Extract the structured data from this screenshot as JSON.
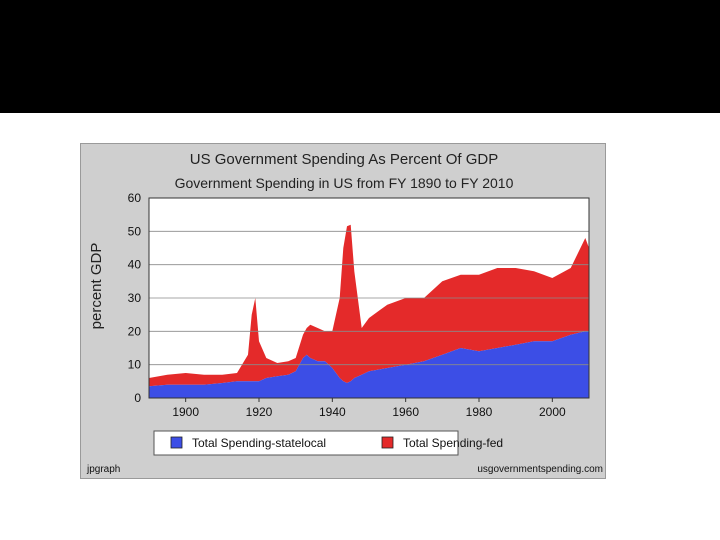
{
  "slide": {
    "background": "#ffffff",
    "band_color": "#000000"
  },
  "chart_data": {
    "type": "area",
    "title": "US Government Spending As Percent Of GDP",
    "subtitle": "Government Spending in US from FY 1890 to FY 2010",
    "xlabel": "",
    "ylabel": "percent GDP",
    "xlim": [
      1890,
      2010
    ],
    "ylim": [
      0,
      60
    ],
    "x_ticks": [
      1900,
      1920,
      1940,
      1960,
      1980,
      2000
    ],
    "y_ticks": [
      0,
      10,
      20,
      30,
      40,
      50,
      60
    ],
    "grid": true,
    "stacked": true,
    "legend_position": "bottom",
    "series": [
      {
        "name": "Total Spending-statelocal",
        "color": "#3c4ee6",
        "points": [
          [
            1890,
            3.5
          ],
          [
            1895,
            4
          ],
          [
            1900,
            4
          ],
          [
            1905,
            4
          ],
          [
            1910,
            4.5
          ],
          [
            1914,
            5
          ],
          [
            1917,
            5
          ],
          [
            1918,
            5
          ],
          [
            1919,
            5
          ],
          [
            1920,
            5
          ],
          [
            1922,
            6
          ],
          [
            1925,
            6.5
          ],
          [
            1928,
            7
          ],
          [
            1930,
            8
          ],
          [
            1932,
            12
          ],
          [
            1933,
            13
          ],
          [
            1934,
            12
          ],
          [
            1936,
            11
          ],
          [
            1938,
            11
          ],
          [
            1940,
            9
          ],
          [
            1942,
            6
          ],
          [
            1943,
            5
          ],
          [
            1944,
            4.5
          ],
          [
            1945,
            5
          ],
          [
            1946,
            6
          ],
          [
            1948,
            7
          ],
          [
            1950,
            8
          ],
          [
            1955,
            9
          ],
          [
            1960,
            10
          ],
          [
            1965,
            11
          ],
          [
            1970,
            13
          ],
          [
            1975,
            15
          ],
          [
            1980,
            14
          ],
          [
            1985,
            15
          ],
          [
            1990,
            16
          ],
          [
            1995,
            17
          ],
          [
            2000,
            17
          ],
          [
            2005,
            19
          ],
          [
            2009,
            20
          ],
          [
            2010,
            20
          ]
        ]
      },
      {
        "name": "Total Spending-fed",
        "color": "#e42a2a",
        "points": [
          [
            1890,
            2.5
          ],
          [
            1895,
            3
          ],
          [
            1900,
            3.5
          ],
          [
            1905,
            3
          ],
          [
            1910,
            2.5
          ],
          [
            1914,
            2.5
          ],
          [
            1917,
            8
          ],
          [
            1918,
            20
          ],
          [
            1919,
            25
          ],
          [
            1920,
            12
          ],
          [
            1922,
            6
          ],
          [
            1925,
            4
          ],
          [
            1928,
            4
          ],
          [
            1930,
            4
          ],
          [
            1932,
            7
          ],
          [
            1933,
            8
          ],
          [
            1934,
            10
          ],
          [
            1936,
            10
          ],
          [
            1938,
            9
          ],
          [
            1940,
            11
          ],
          [
            1942,
            24
          ],
          [
            1943,
            40
          ],
          [
            1944,
            47
          ],
          [
            1945,
            47
          ],
          [
            1946,
            32
          ],
          [
            1948,
            14
          ],
          [
            1950,
            16
          ],
          [
            1955,
            19
          ],
          [
            1960,
            20
          ],
          [
            1965,
            19
          ],
          [
            1970,
            22
          ],
          [
            1975,
            22
          ],
          [
            1980,
            23
          ],
          [
            1985,
            24
          ],
          [
            1990,
            23
          ],
          [
            1995,
            21
          ],
          [
            2000,
            19
          ],
          [
            2005,
            20
          ],
          [
            2009,
            28
          ],
          [
            2010,
            25
          ]
        ]
      }
    ],
    "credits": {
      "left": "jpgraph",
      "right": "usgovernmentspending.com"
    }
  }
}
